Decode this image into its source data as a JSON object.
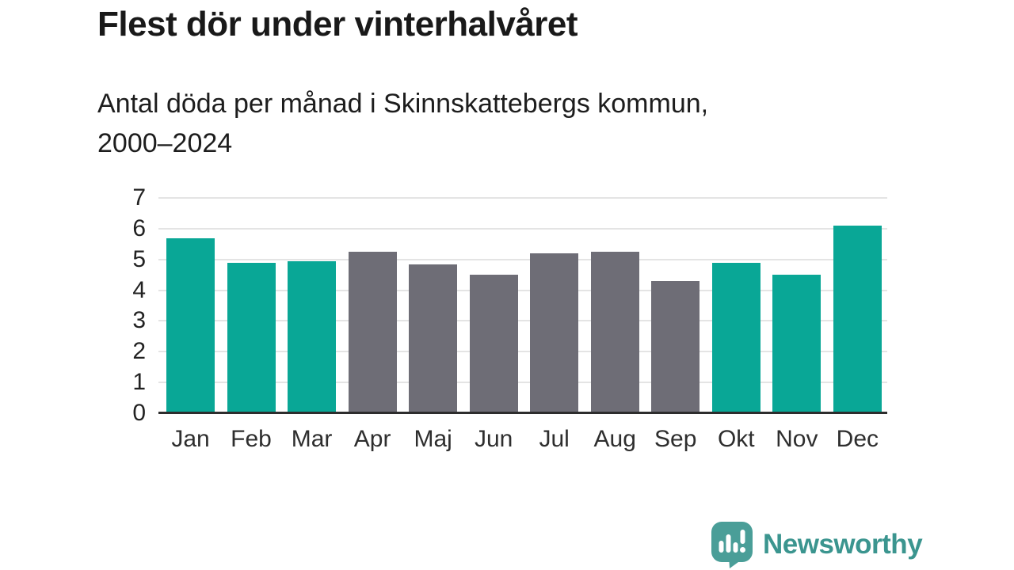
{
  "chart_data": {
    "type": "bar",
    "title": "Flest dör under vinterhalvåret",
    "subtitle_lines": [
      "Antal döda per månad i Skinnskattebergs kommun,",
      "2000–2024"
    ],
    "categories": [
      "Jan",
      "Feb",
      "Mar",
      "Apr",
      "Maj",
      "Jun",
      "Jul",
      "Aug",
      "Sep",
      "Okt",
      "Nov",
      "Dec"
    ],
    "values": [
      5.7,
      4.9,
      4.95,
      5.25,
      4.85,
      4.5,
      5.2,
      5.25,
      4.3,
      4.9,
      4.5,
      6.1
    ],
    "bar_groups": [
      "winter",
      "winter",
      "winter",
      "summer",
      "summer",
      "summer",
      "summer",
      "summer",
      "summer",
      "winter",
      "winter",
      "winter"
    ],
    "group_colors": {
      "winter": "#09a796",
      "summer": "#6e6d76"
    },
    "xlabel": "",
    "ylabel": "",
    "ylim": [
      0,
      7
    ],
    "yticks": [
      0,
      1,
      2,
      3,
      4,
      5,
      6,
      7
    ],
    "grid": true,
    "legend": "none"
  },
  "footer": {
    "brand_label": "Newsworthy",
    "brand_color": "#3b958f",
    "icon_color": "#4a9e98",
    "icon_name": "newsworthy-logo-icon"
  }
}
